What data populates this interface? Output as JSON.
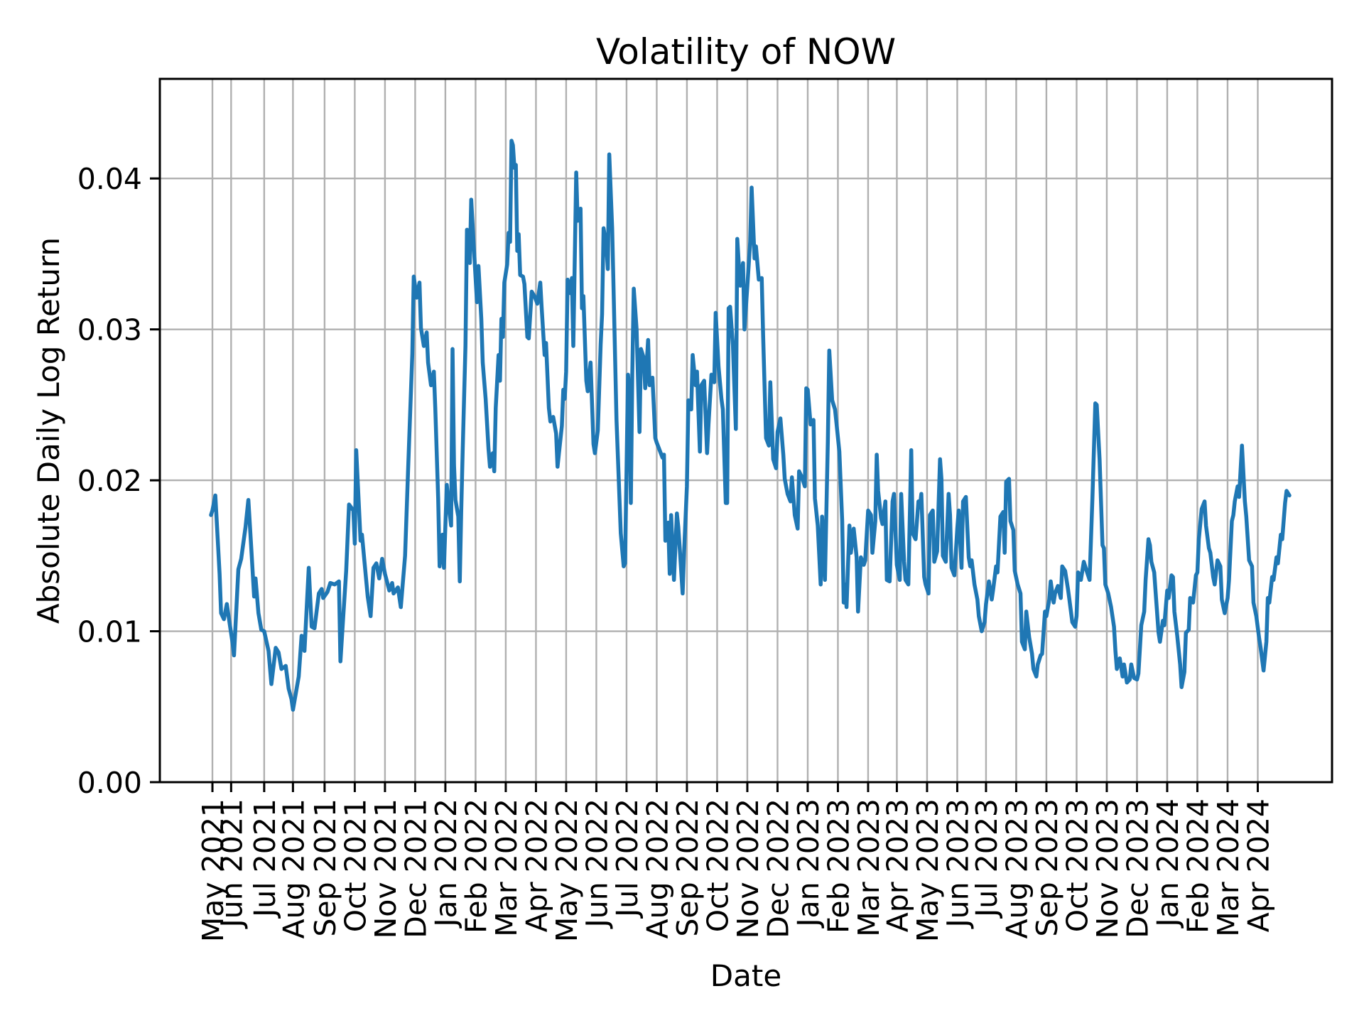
{
  "chart_data": {
    "type": "line",
    "title": "Volatility of NOW",
    "xlabel": "Date",
    "ylabel": "Absolute Daily Log Return",
    "grid": true,
    "legend": "none",
    "line_color": "#1f77b4",
    "grid_color": "#b0b0b0",
    "background": "#ffffff",
    "ylim": [
      0,
      0.0466
    ],
    "yticks": [
      {
        "label": "0.00",
        "value": 0.0
      },
      {
        "label": "0.01",
        "value": 0.01
      },
      {
        "label": "0.02",
        "value": 0.02
      },
      {
        "label": "0.03",
        "value": 0.03
      },
      {
        "label": "0.04",
        "value": 0.04
      }
    ],
    "x_unit": "trading-day index (0 = first plotted day, mid-May 2021)",
    "xlim": [
      -36,
      780
    ],
    "xticks": [
      {
        "label": "May 2021",
        "day": 1
      },
      {
        "label": "Jun 2021",
        "day": 14
      },
      {
        "label": "Jul 2021",
        "day": 37
      },
      {
        "label": "Aug 2021",
        "day": 57
      },
      {
        "label": "Sep 2021",
        "day": 79
      },
      {
        "label": "Oct 2021",
        "day": 100
      },
      {
        "label": "Nov 2021",
        "day": 121
      },
      {
        "label": "Dec 2021",
        "day": 142
      },
      {
        "label": "Jan 2022",
        "day": 163
      },
      {
        "label": "Feb 2022",
        "day": 184
      },
      {
        "label": "Mar 2022",
        "day": 205
      },
      {
        "label": "Apr 2022",
        "day": 226
      },
      {
        "label": "May 2022",
        "day": 247
      },
      {
        "label": "Jun 2022",
        "day": 268
      },
      {
        "label": "Jul 2022",
        "day": 289
      },
      {
        "label": "Aug 2022",
        "day": 310
      },
      {
        "label": "Sep 2022",
        "day": 331
      },
      {
        "label": "Oct 2022",
        "day": 352
      },
      {
        "label": "Nov 2022",
        "day": 373
      },
      {
        "label": "Dec 2022",
        "day": 394
      },
      {
        "label": "Jan 2023",
        "day": 415
      },
      {
        "label": "Feb 2023",
        "day": 436
      },
      {
        "label": "Mar 2023",
        "day": 457
      },
      {
        "label": "Apr 2023",
        "day": 477
      },
      {
        "label": "May 2023",
        "day": 498
      },
      {
        "label": "Jun 2023",
        "day": 519
      },
      {
        "label": "Jul 2023",
        "day": 539
      },
      {
        "label": "Aug 2023",
        "day": 560
      },
      {
        "label": "Sep 2023",
        "day": 581
      },
      {
        "label": "Oct 2023",
        "day": 602
      },
      {
        "label": "Nov 2023",
        "day": 623
      },
      {
        "label": "Dec 2023",
        "day": 644
      },
      {
        "label": "Jan 2024",
        "day": 665
      },
      {
        "label": "Feb 2024",
        "day": 686
      },
      {
        "label": "Mar 2024",
        "day": 707
      },
      {
        "label": "Apr 2024",
        "day": 728
      }
    ],
    "series": [
      {
        "name": "Absolute Daily Log Return of NOW",
        "x": [
          0,
          1,
          3,
          6,
          7,
          9,
          11,
          13,
          15,
          16,
          19,
          21,
          24,
          26,
          28,
          30,
          31,
          33,
          35,
          37,
          40,
          42,
          45,
          47,
          49,
          52,
          54,
          56,
          57,
          61,
          63,
          65,
          68,
          70,
          72,
          75,
          77,
          78,
          81,
          83,
          86,
          89,
          90,
          92,
          94,
          96,
          99,
          100,
          101,
          103,
          104,
          105,
          109,
          111,
          113,
          115,
          117,
          119,
          121,
          124,
          126,
          127,
          130,
          132,
          135,
          137,
          140,
          141,
          143,
          145,
          146,
          148,
          150,
          151,
          153,
          155,
          156,
          158,
          159,
          161,
          162,
          164,
          166,
          167,
          168,
          169,
          170,
          172,
          173,
          174,
          175,
          177,
          178,
          180,
          181,
          183,
          185,
          186,
          188,
          189,
          191,
          193,
          194,
          196,
          197,
          198,
          200,
          201,
          202,
          203,
          204,
          206,
          207,
          208,
          209,
          210,
          211,
          212,
          213,
          214,
          215,
          217,
          218,
          220,
          221,
          223,
          225,
          227,
          229,
          230,
          232,
          233,
          235,
          236,
          238,
          240,
          241,
          242,
          244,
          245,
          246,
          247,
          248,
          250,
          251,
          252,
          254,
          255,
          257,
          258,
          259,
          261,
          262,
          264,
          266,
          267,
          269,
          271,
          272,
          273,
          275,
          276,
          277,
          279,
          280,
          282,
          284,
          285,
          287,
          288,
          290,
          291,
          292,
          293,
          294,
          296,
          298,
          299,
          301,
          302,
          304,
          305,
          307,
          309,
          310,
          312,
          314,
          315,
          316,
          318,
          319,
          320,
          322,
          324,
          325,
          326,
          328,
          329,
          331,
          332,
          334,
          335,
          337,
          338,
          340,
          341,
          343,
          345,
          346,
          348,
          350,
          351,
          353,
          355,
          356,
          358,
          359,
          360,
          361,
          363,
          365,
          366,
          368,
          370,
          371,
          373,
          375,
          376,
          378,
          379,
          381,
          383,
          384,
          386,
          388,
          389,
          391,
          393,
          394,
          396,
          398,
          399,
          401,
          403,
          404,
          406,
          408,
          409,
          411,
          413,
          414,
          415,
          417,
          419,
          420,
          422,
          424,
          425,
          427,
          429,
          430,
          432,
          434,
          435,
          437,
          439,
          440,
          441,
          442,
          444,
          445,
          447,
          449,
          450,
          452,
          454,
          455,
          457,
          459,
          460,
          462,
          463,
          464,
          466,
          467,
          469,
          470,
          472,
          474,
          475,
          477,
          479,
          480,
          482,
          483,
          485,
          487,
          488,
          490,
          492,
          493,
          494,
          496,
          497,
          499,
          500,
          502,
          503,
          505,
          507,
          508,
          509,
          511,
          513,
          514,
          515,
          517,
          519,
          520,
          522,
          523,
          525,
          527,
          528,
          529,
          531,
          533,
          534,
          536,
          538,
          539,
          541,
          543,
          544,
          546,
          547,
          549,
          551,
          552,
          553,
          555,
          556,
          558,
          559,
          561,
          563,
          564,
          566,
          567,
          569,
          571,
          572,
          574,
          575,
          577,
          578,
          580,
          581,
          583,
          584,
          586,
          587,
          589,
          591,
          592,
          594,
          596,
          597,
          599,
          601,
          602,
          603,
          605,
          607,
          608,
          609,
          611,
          613,
          615,
          616,
          618,
          620,
          621,
          622,
          624,
          626,
          628,
          629,
          630,
          632,
          634,
          635,
          637,
          639,
          640,
          642,
          644,
          645,
          647,
          649,
          650,
          652,
          653,
          654,
          656,
          657,
          659,
          660,
          662,
          663,
          665,
          666,
          668,
          669,
          670,
          672,
          674,
          675,
          677,
          678,
          680,
          681,
          683,
          685,
          686,
          687,
          689,
          691,
          692,
          694,
          695,
          697,
          698,
          700,
          702,
          703,
          705,
          707,
          708,
          710,
          711,
          712,
          714,
          715,
          717,
          719,
          720,
          722,
          724,
          725,
          727,
          729,
          730,
          732,
          734,
          735,
          736,
          738,
          739,
          741,
          742,
          744,
          745,
          747,
          748,
          750
        ],
        "y": [
          0.0177,
          0.018,
          0.019,
          0.0138,
          0.0112,
          0.0108,
          0.0118,
          0.0105,
          0.0092,
          0.0084,
          0.0141,
          0.0148,
          0.0169,
          0.0187,
          0.0155,
          0.0123,
          0.0135,
          0.0112,
          0.0101,
          0.01,
          0.0087,
          0.0065,
          0.0089,
          0.0086,
          0.0075,
          0.0077,
          0.0062,
          0.0055,
          0.0048,
          0.007,
          0.0097,
          0.0087,
          0.0142,
          0.0103,
          0.0102,
          0.0125,
          0.0128,
          0.0122,
          0.0126,
          0.0132,
          0.0131,
          0.0133,
          0.008,
          0.011,
          0.014,
          0.0184,
          0.018,
          0.0158,
          0.022,
          0.018,
          0.016,
          0.0164,
          0.0123,
          0.011,
          0.0142,
          0.0145,
          0.0135,
          0.0148,
          0.0138,
          0.0127,
          0.0132,
          0.0125,
          0.0129,
          0.0116,
          0.015,
          0.0205,
          0.0284,
          0.0335,
          0.0321,
          0.0331,
          0.0301,
          0.0289,
          0.0298,
          0.0278,
          0.0263,
          0.0272,
          0.0248,
          0.0188,
          0.0143,
          0.0164,
          0.0142,
          0.0197,
          0.0178,
          0.017,
          0.0287,
          0.021,
          0.0187,
          0.0176,
          0.0133,
          0.0179,
          0.0218,
          0.0289,
          0.0366,
          0.0344,
          0.0386,
          0.0351,
          0.0318,
          0.0342,
          0.0307,
          0.0278,
          0.0254,
          0.0221,
          0.0209,
          0.0218,
          0.0206,
          0.0248,
          0.0283,
          0.0266,
          0.0307,
          0.0295,
          0.0331,
          0.0343,
          0.0364,
          0.0358,
          0.0425,
          0.0422,
          0.0407,
          0.0409,
          0.0352,
          0.0363,
          0.0336,
          0.0335,
          0.033,
          0.0295,
          0.0294,
          0.0325,
          0.0322,
          0.0317,
          0.0331,
          0.0314,
          0.0283,
          0.0291,
          0.0248,
          0.0239,
          0.0242,
          0.0231,
          0.0209,
          0.0218,
          0.0236,
          0.026,
          0.0254,
          0.0272,
          0.0333,
          0.0324,
          0.0334,
          0.0289,
          0.0404,
          0.0372,
          0.038,
          0.0314,
          0.0322,
          0.0266,
          0.0259,
          0.0278,
          0.0224,
          0.0218,
          0.0233,
          0.029,
          0.031,
          0.0367,
          0.0355,
          0.034,
          0.0416,
          0.0367,
          0.0326,
          0.024,
          0.019,
          0.0165,
          0.0143,
          0.0145,
          0.027,
          0.0258,
          0.0185,
          0.027,
          0.0327,
          0.03,
          0.0232,
          0.0287,
          0.0281,
          0.0261,
          0.0293,
          0.0263,
          0.0268,
          0.0228,
          0.0225,
          0.022,
          0.0215,
          0.0217,
          0.016,
          0.0172,
          0.0138,
          0.0177,
          0.0134,
          0.0178,
          0.0169,
          0.0155,
          0.0125,
          0.0152,
          0.0196,
          0.0253,
          0.0247,
          0.0283,
          0.0263,
          0.0272,
          0.0219,
          0.0263,
          0.0266,
          0.0218,
          0.0237,
          0.027,
          0.0265,
          0.0311,
          0.0275,
          0.0254,
          0.0247,
          0.0185,
          0.0185,
          0.0314,
          0.0315,
          0.0289,
          0.0234,
          0.036,
          0.0329,
          0.0344,
          0.03,
          0.0329,
          0.0358,
          0.0394,
          0.0347,
          0.0355,
          0.0333,
          0.0334,
          0.0296,
          0.0228,
          0.0223,
          0.0265,
          0.0214,
          0.0208,
          0.0232,
          0.0241,
          0.0217,
          0.0201,
          0.0191,
          0.0186,
          0.0202,
          0.0177,
          0.0168,
          0.0206,
          0.0202,
          0.0196,
          0.0261,
          0.026,
          0.0237,
          0.024,
          0.0188,
          0.017,
          0.0131,
          0.0176,
          0.0134,
          0.0226,
          0.0286,
          0.0253,
          0.0247,
          0.0238,
          0.0219,
          0.0173,
          0.0119,
          0.0131,
          0.0116,
          0.017,
          0.0152,
          0.0168,
          0.0149,
          0.0113,
          0.0149,
          0.0144,
          0.0147,
          0.018,
          0.0177,
          0.0152,
          0.0173,
          0.0217,
          0.0193,
          0.0175,
          0.0171,
          0.0186,
          0.0134,
          0.0133,
          0.0186,
          0.0191,
          0.0144,
          0.0134,
          0.0191,
          0.0146,
          0.0134,
          0.0131,
          0.022,
          0.0165,
          0.0161,
          0.0186,
          0.0182,
          0.0191,
          0.0136,
          0.0131,
          0.0125,
          0.0177,
          0.018,
          0.0146,
          0.0153,
          0.0214,
          0.0201,
          0.015,
          0.0146,
          0.0191,
          0.0177,
          0.0142,
          0.0137,
          0.0168,
          0.018,
          0.0142,
          0.0186,
          0.0189,
          0.0149,
          0.0143,
          0.0147,
          0.0131,
          0.0121,
          0.011,
          0.01,
          0.0106,
          0.0118,
          0.0133,
          0.0121,
          0.0128,
          0.0143,
          0.0139,
          0.0176,
          0.0179,
          0.0152,
          0.0199,
          0.0201,
          0.0173,
          0.0167,
          0.014,
          0.0131,
          0.0125,
          0.0093,
          0.0088,
          0.0113,
          0.0096,
          0.0085,
          0.0075,
          0.007,
          0.0078,
          0.0084,
          0.0085,
          0.0113,
          0.011,
          0.0121,
          0.0133,
          0.0119,
          0.0125,
          0.013,
          0.0122,
          0.0143,
          0.014,
          0.0128,
          0.0121,
          0.0106,
          0.0103,
          0.011,
          0.0139,
          0.0134,
          0.0146,
          0.0143,
          0.014,
          0.0134,
          0.0188,
          0.0251,
          0.025,
          0.0214,
          0.0157,
          0.0155,
          0.0131,
          0.0125,
          0.0116,
          0.0103,
          0.0087,
          0.0075,
          0.0082,
          0.007,
          0.0078,
          0.0066,
          0.0068,
          0.0078,
          0.0069,
          0.0068,
          0.0072,
          0.0104,
          0.0113,
          0.0134,
          0.0161,
          0.0157,
          0.0146,
          0.0139,
          0.0125,
          0.0099,
          0.0093,
          0.0107,
          0.0104,
          0.0127,
          0.0122,
          0.0137,
          0.0136,
          0.0113,
          0.0097,
          0.0078,
          0.0063,
          0.0073,
          0.0099,
          0.0101,
          0.0122,
          0.0119,
          0.0137,
          0.0139,
          0.0161,
          0.0181,
          0.0186,
          0.017,
          0.0155,
          0.0152,
          0.0136,
          0.0131,
          0.0147,
          0.0143,
          0.0121,
          0.0112,
          0.0122,
          0.0134,
          0.0173,
          0.0177,
          0.0186,
          0.0196,
          0.0189,
          0.0223,
          0.0186,
          0.0176,
          0.0147,
          0.0143,
          0.0119,
          0.011,
          0.0095,
          0.0089,
          0.0074,
          0.0093,
          0.0122,
          0.0119,
          0.0136,
          0.0134,
          0.0149,
          0.0145,
          0.0164,
          0.0161,
          0.0185,
          0.0193,
          0.019
        ]
      }
    ]
  }
}
